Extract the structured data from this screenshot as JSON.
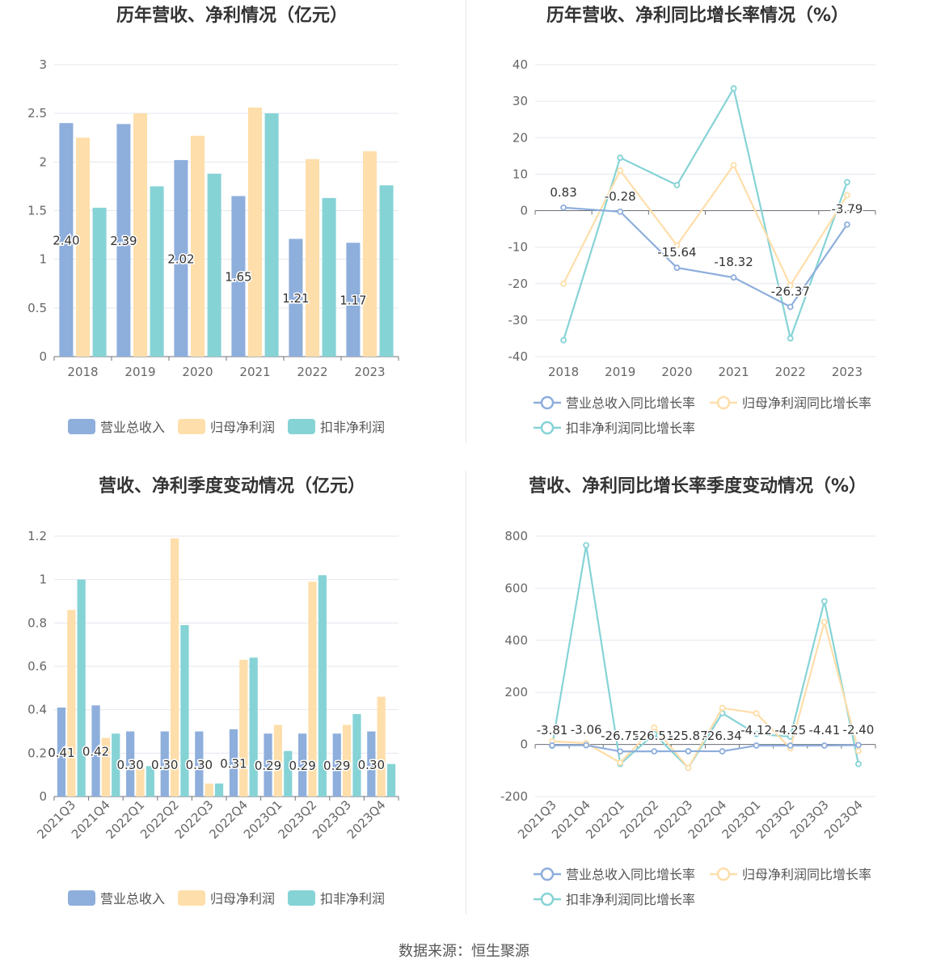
{
  "footer": "数据来源：恒生聚源",
  "colors": {
    "revenue": "#8eaedc",
    "parent": "#fedeaa",
    "deducted": "#86d3d6",
    "axis": "#666666",
    "grid": "#e4e7ef"
  },
  "chart_data": [
    {
      "type": "bar",
      "title": "历年营收、净利情况（亿元）",
      "categories": [
        "2018",
        "2019",
        "2020",
        "2021",
        "2022",
        "2023"
      ],
      "ylim": [
        0,
        3
      ],
      "yticks": [
        "0",
        "0.5",
        "1",
        "1.5",
        "2",
        "2.5",
        "3"
      ],
      "series": [
        {
          "name": "营业总收入",
          "values": [
            2.4,
            2.39,
            2.02,
            1.65,
            1.21,
            1.17
          ],
          "labels": [
            "2.40",
            "2.39",
            "2.02",
            "1.65",
            "1.21",
            "1.17"
          ]
        },
        {
          "name": "归母净利润",
          "values": [
            2.25,
            2.5,
            2.27,
            2.56,
            2.03,
            2.11
          ]
        },
        {
          "name": "扣非净利润",
          "values": [
            1.53,
            1.75,
            1.88,
            2.5,
            1.63,
            1.76
          ]
        }
      ],
      "legend": "bottom"
    },
    {
      "type": "line",
      "title": "历年营收、净利同比增长率情况（%）",
      "categories": [
        "2018",
        "2019",
        "2020",
        "2021",
        "2022",
        "2023"
      ],
      "ylim": [
        -40,
        40
      ],
      "yticks": [
        "-40",
        "-30",
        "-20",
        "-10",
        "0",
        "10",
        "20",
        "30",
        "40"
      ],
      "series": [
        {
          "name": "营业总收入同比增长率",
          "values": [
            0.83,
            -0.28,
            -15.64,
            -18.32,
            -26.37,
            -3.79
          ],
          "labels": [
            "0.83",
            "-0.28",
            "-15.64",
            "-18.32",
            "-26.37",
            "-3.79"
          ]
        },
        {
          "name": "归母净利润同比增长率",
          "values": [
            -20,
            11,
            -9.5,
            12.5,
            -20.5,
            4.2
          ]
        },
        {
          "name": "扣非净利润同比增长率",
          "values": [
            -35.5,
            14.5,
            7,
            33.5,
            -35,
            7.8
          ]
        }
      ],
      "legend": "bottom"
    },
    {
      "type": "bar",
      "title": "营收、净利季度变动情况（亿元）",
      "categories": [
        "2021Q3",
        "2021Q4",
        "2022Q1",
        "2022Q2",
        "2022Q3",
        "2022Q4",
        "2023Q1",
        "2023Q2",
        "2023Q3",
        "2023Q4"
      ],
      "ylim": [
        0,
        1.2
      ],
      "yticks": [
        "0",
        "0.2",
        "0.4",
        "0.6",
        "0.8",
        "1",
        "1.2"
      ],
      "series": [
        {
          "name": "营业总收入",
          "values": [
            0.41,
            0.42,
            0.3,
            0.3,
            0.3,
            0.31,
            0.29,
            0.29,
            0.29,
            0.3
          ],
          "labels": [
            "0.41",
            "0.42",
            "0.30",
            "0.30",
            "0.30",
            "0.31",
            "0.29",
            "0.29",
            "0.29",
            "0.30"
          ]
        },
        {
          "name": "归母净利润",
          "values": [
            0.86,
            0.27,
            0.13,
            1.19,
            0.06,
            0.63,
            0.33,
            0.99,
            0.33,
            0.46
          ]
        },
        {
          "name": "扣非净利润",
          "values": [
            1.0,
            0.29,
            0.14,
            0.79,
            0.06,
            0.64,
            0.21,
            1.02,
            0.38,
            0.15
          ]
        }
      ],
      "legend": "bottom"
    },
    {
      "type": "line",
      "title": "营收、净利同比增长率季度变动情况（%）",
      "categories": [
        "2021Q3",
        "2021Q4",
        "2022Q1",
        "2022Q2",
        "2022Q3",
        "2022Q4",
        "2023Q1",
        "2023Q2",
        "2023Q3",
        "2023Q4"
      ],
      "ylim": [
        -200,
        800
      ],
      "yticks": [
        "-200",
        "0",
        "200",
        "400",
        "600",
        "800"
      ],
      "series": [
        {
          "name": "营业总收入同比增长率",
          "values": [
            -3.81,
            -3.06,
            -26.75,
            -26.51,
            -25.87,
            -26.34,
            -4.12,
            -4.25,
            -4.41,
            -2.4
          ],
          "labels": [
            "-3.81",
            "-3.06",
            "-26.75",
            "-26.51",
            "-25.87",
            "-26.34",
            "-4.12",
            "-4.25",
            "-4.41",
            "-2.40"
          ]
        },
        {
          "name": "归母净利润同比增长率",
          "values": [
            12,
            5,
            -70,
            65,
            -90,
            140,
            120,
            -15,
            470,
            -25
          ]
        },
        {
          "name": "扣非净利润同比增长率",
          "values": [
            -5,
            765,
            -75,
            40,
            -90,
            120,
            40,
            30,
            550,
            -75
          ]
        }
      ],
      "legend": "bottom"
    }
  ]
}
